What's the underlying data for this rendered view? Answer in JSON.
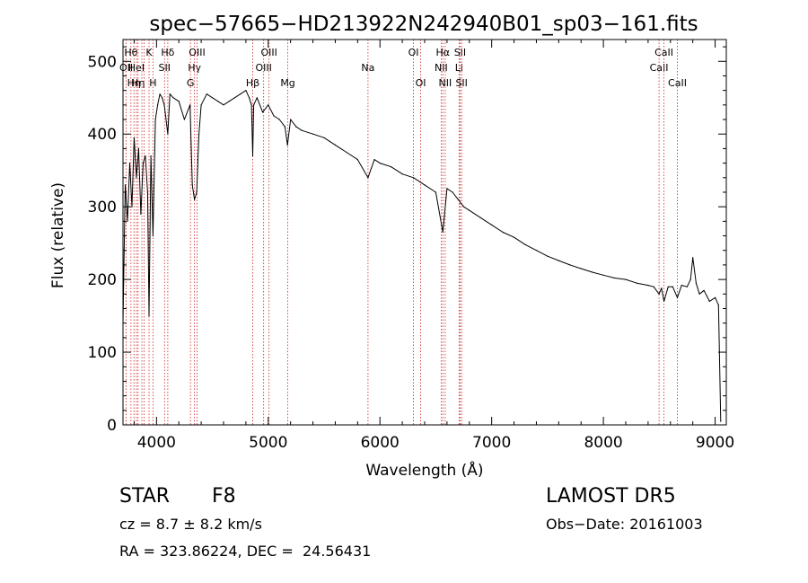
{
  "chart_data": {
    "type": "line",
    "title": "spec−57665−HD213922N242940B01_sp03−161.fits",
    "xlabel": "Wavelength (Å)",
    "ylabel": "Flux (relative)",
    "xlim": [
      3700,
      9100
    ],
    "ylim": [
      0,
      530
    ],
    "xticks": [
      4000,
      5000,
      6000,
      7000,
      8000,
      9000
    ],
    "yticks": [
      0,
      100,
      200,
      300,
      400,
      500
    ],
    "grid": false,
    "line_color": "#000000",
    "marker_color": "#cc2222",
    "series": [
      {
        "x": [
          3700,
          3720,
          3740,
          3760,
          3780,
          3800,
          3820,
          3840,
          3860,
          3880,
          3900,
          3920,
          3933,
          3950,
          3968,
          3990,
          4010,
          4030,
          4050,
          4070,
          4101,
          4120,
          4150,
          4200,
          4250,
          4300,
          4320,
          4340,
          4360,
          4380,
          4400,
          4450,
          4500,
          4550,
          4600,
          4650,
          4700,
          4750,
          4800,
          4830,
          4850,
          4861,
          4870,
          4900,
          4950,
          5000,
          5050,
          5100,
          5150,
          5172,
          5200,
          5250,
          5300,
          5400,
          5500,
          5600,
          5700,
          5800,
          5893,
          5950,
          6000,
          6100,
          6200,
          6300,
          6400,
          6500,
          6563,
          6600,
          6650,
          6700,
          6750,
          6800,
          6900,
          7000,
          7100,
          7200,
          7300,
          7400,
          7500,
          7600,
          7700,
          7800,
          7900,
          8000,
          8100,
          8200,
          8300,
          8400,
          8450,
          8498,
          8520,
          8542,
          8580,
          8620,
          8662,
          8700,
          8750,
          8780,
          8800,
          8830,
          8860,
          8900,
          8950,
          9000,
          9030,
          9050
        ],
        "values": [
          140,
          330,
          280,
          360,
          300,
          395,
          340,
          380,
          290,
          360,
          370,
          320,
          150,
          370,
          260,
          420,
          440,
          455,
          450,
          440,
          400,
          455,
          450,
          445,
          420,
          440,
          330,
          310,
          320,
          400,
          440,
          455,
          450,
          445,
          440,
          445,
          450,
          455,
          460,
          450,
          440,
          370,
          440,
          450,
          430,
          440,
          425,
          420,
          410,
          385,
          420,
          410,
          405,
          400,
          395,
          385,
          375,
          365,
          340,
          365,
          360,
          355,
          345,
          340,
          330,
          320,
          265,
          325,
          320,
          310,
          300,
          295,
          285,
          275,
          265,
          258,
          248,
          240,
          232,
          226,
          220,
          215,
          210,
          206,
          202,
          200,
          195,
          192,
          190,
          180,
          188,
          170,
          190,
          190,
          175,
          192,
          190,
          200,
          230,
          195,
          180,
          185,
          170,
          175,
          165,
          5
        ]
      }
    ],
    "lines": [
      {
        "x": 3729,
        "label": "OII",
        "row": 1
      },
      {
        "x": 3771,
        "label": "Hθ",
        "row": 0
      },
      {
        "x": 3798,
        "label": "Hη",
        "row": 2
      },
      {
        "x": 3820,
        "label": "HeI",
        "row": 1
      },
      {
        "x": 3835,
        "label": "Hη",
        "row": 2
      },
      {
        "x": 3869,
        "label": "",
        "row": 0
      },
      {
        "x": 3889,
        "label": "",
        "row": 0
      },
      {
        "x": 3933,
        "label": "K",
        "row": 0
      },
      {
        "x": 3968,
        "label": "H",
        "row": 2
      },
      {
        "x": 4072,
        "label": "SII",
        "row": 1
      },
      {
        "x": 4101,
        "label": "Hδ",
        "row": 0
      },
      {
        "x": 4304,
        "label": "G",
        "row": 2
      },
      {
        "x": 4340,
        "label": "Hγ",
        "row": 1
      },
      {
        "x": 4363,
        "label": "OIII",
        "row": 0
      },
      {
        "x": 4861,
        "label": "Hβ",
        "row": 2
      },
      {
        "x": 4959,
        "label": "OIII",
        "row": 1
      },
      {
        "x": 5007,
        "label": "OIII",
        "row": 0
      },
      {
        "x": 5175,
        "label": "Mg",
        "row": 2
      },
      {
        "x": 5893,
        "label": "Na",
        "row": 1
      },
      {
        "x": 6300,
        "label": "OI",
        "row": 0
      },
      {
        "x": 6364,
        "label": "OI",
        "row": 2
      },
      {
        "x": 6548,
        "label": "NII",
        "row": 1
      },
      {
        "x": 6563,
        "label": "Hα",
        "row": 0
      },
      {
        "x": 6584,
        "label": "NII",
        "row": 2
      },
      {
        "x": 6708,
        "label": "Li",
        "row": 1
      },
      {
        "x": 6717,
        "label": "SII",
        "row": 0
      },
      {
        "x": 6731,
        "label": "SII",
        "row": 2
      },
      {
        "x": 8498,
        "label": "CaII",
        "row": 1
      },
      {
        "x": 8542,
        "label": "CaII",
        "row": 0
      },
      {
        "x": 8662,
        "label": "CaII",
        "row": 2
      }
    ]
  },
  "info": {
    "class_label": "STAR",
    "subclass": "F8",
    "survey": "LAMOST DR5",
    "cz": "cz = 8.7 ± 8.2 km/s",
    "obs_date": "Obs−Date: 20161003",
    "coords": "RA = 323.86224, DEC =  24.56431"
  }
}
